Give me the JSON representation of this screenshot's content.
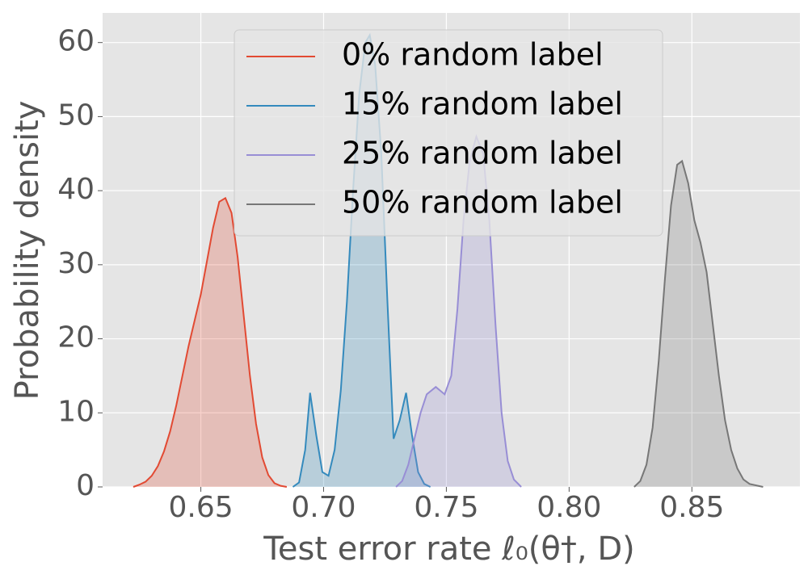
{
  "chart_data": {
    "type": "density",
    "x_label": "Test error rate ℓ₀(θ†, D)",
    "y_label": "Probability density",
    "xlim": [
      0.61,
      0.894
    ],
    "ylim": [
      0,
      64
    ],
    "xticks": [
      0.65,
      {
        "value": 0.7,
        "label": "0.70"
      },
      0.75,
      {
        "value": 0.8,
        "label": "0.80"
      },
      0.85
    ],
    "yticks": [
      0,
      10,
      20,
      30,
      40,
      50,
      60
    ],
    "grid": true,
    "legend": "upper center",
    "series": [
      {
        "name": "0% random label",
        "color": "#E24A33",
        "x": [
          0.6225,
          0.625,
          0.6275,
          0.63,
          0.6325,
          0.635,
          0.6375,
          0.64,
          0.6425,
          0.645,
          0.6475,
          0.65,
          0.6525,
          0.655,
          0.6575,
          0.66,
          0.6625,
          0.665,
          0.6675,
          0.67,
          0.6725,
          0.675,
          0.6775,
          0.68,
          0.6825,
          0.685
        ],
        "values": [
          0,
          0.3,
          0.7,
          1.5,
          2.8,
          4.8,
          7.5,
          11,
          15,
          19,
          22.5,
          26,
          30.5,
          35,
          38.5,
          39,
          37,
          31,
          23,
          15,
          8.5,
          4,
          1.6,
          0.5,
          0.15,
          0
        ]
      },
      {
        "name": "15% random label",
        "color": "#348ABD",
        "x": [
          0.6875,
          0.69,
          0.6925,
          0.6945,
          0.697,
          0.6995,
          0.702,
          0.7045,
          0.707,
          0.7095,
          0.712,
          0.7145,
          0.717,
          0.7188,
          0.721,
          0.7235,
          0.726,
          0.7285,
          0.731,
          0.7336,
          0.736,
          0.7385,
          0.741,
          0.7435
        ],
        "values": [
          0,
          0.6,
          5,
          12.7,
          7,
          2,
          1.5,
          5,
          13,
          25,
          40,
          53,
          60,
          61,
          57,
          45,
          25,
          6.5,
          9,
          12.7,
          7,
          2,
          0.4,
          0
        ]
      },
      {
        "name": "25% random label",
        "color": "#988ED5",
        "x": [
          0.7295,
          0.732,
          0.7345,
          0.737,
          0.7395,
          0.742,
          0.7457,
          0.7493,
          0.752,
          0.7545,
          0.757,
          0.7595,
          0.7622,
          0.765,
          0.7675,
          0.77,
          0.7725,
          0.775,
          0.7775,
          0.7805
        ],
        "values": [
          0,
          0.8,
          3,
          6.5,
          10,
          12.5,
          13.5,
          12.5,
          15,
          24,
          36,
          44,
          47.3,
          45,
          36,
          22,
          10,
          3.5,
          1,
          0
        ]
      },
      {
        "name": "50% random label",
        "color": "#777777",
        "x": [
          0.8265,
          0.829,
          0.8315,
          0.834,
          0.8365,
          0.839,
          0.8415,
          0.844,
          0.846,
          0.8485,
          0.851,
          0.8535,
          0.856,
          0.8585,
          0.861,
          0.8635,
          0.866,
          0.8685,
          0.871,
          0.8735,
          0.879
        ],
        "values": [
          0,
          0.8,
          3,
          8,
          17,
          28,
          38,
          43.5,
          44,
          41,
          36,
          33,
          29,
          22,
          15,
          9,
          5,
          2.5,
          1,
          0.4,
          0
        ]
      }
    ]
  }
}
